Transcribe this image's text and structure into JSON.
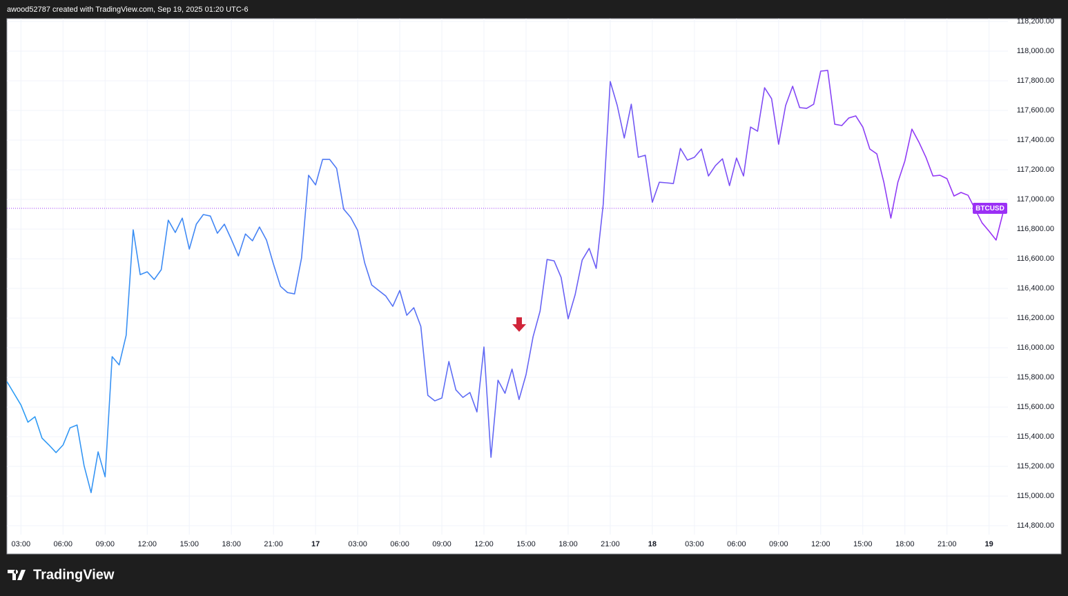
{
  "brand": "TradingView",
  "chart_data": {
    "type": "line",
    "title": "awood52787 created with TradingView.com, Sep 19, 2025 01:20 UTC-6",
    "categories": [
      null,
      null,
      "03:00",
      null,
      null,
      null,
      null,
      null,
      "06:00",
      null,
      null,
      null,
      null,
      null,
      "09:00",
      null,
      null,
      null,
      null,
      null,
      "12:00",
      null,
      null,
      null,
      null,
      null,
      "15:00",
      null,
      null,
      null,
      null,
      null,
      "18:00",
      null,
      null,
      null,
      null,
      null,
      "21:00",
      null,
      null,
      null,
      null,
      null,
      "17",
      null,
      null,
      null,
      null,
      null,
      "03:00",
      null,
      null,
      null,
      null,
      null,
      "06:00",
      null,
      null,
      null,
      null,
      null,
      "09:00",
      null,
      null,
      null,
      null,
      null,
      "12:00",
      null,
      null,
      null,
      null,
      null,
      "15:00",
      null,
      null,
      null,
      null,
      null,
      "18:00",
      null,
      null,
      null,
      null,
      null,
      "21:00",
      null,
      null,
      null,
      null,
      null,
      "18",
      null,
      null,
      null,
      null,
      null,
      "03:00",
      null,
      null,
      null,
      null,
      null,
      "06:00",
      null,
      null,
      null,
      null,
      null,
      "09:00",
      null,
      null,
      null,
      null,
      null,
      "12:00",
      null,
      null,
      null,
      null,
      null,
      "15:00",
      null,
      null,
      null,
      null,
      null,
      "18:00",
      null,
      null,
      null,
      null,
      null,
      "21:00",
      null,
      null,
      null,
      null,
      null,
      "19",
      null,
      null
    ],
    "series": [
      {
        "name": "BTCUSD",
        "color": [
          "#2a9df4",
          "#9b30f5"
        ],
        "values": [
          115772,
          115693,
          115614,
          115498,
          115535,
          115391,
          115344,
          115293,
          115344,
          115460,
          115479,
          115205,
          115023,
          115298,
          115130,
          115940,
          115884,
          116084,
          116795,
          116493,
          116512,
          116460,
          116526,
          116860,
          116777,
          116874,
          116665,
          116833,
          116898,
          116888,
          116772,
          116833,
          116730,
          116619,
          116767,
          116721,
          116814,
          116726,
          116563,
          116414,
          116372,
          116363,
          116605,
          117163,
          117098,
          117270,
          117270,
          117209,
          116935,
          116879,
          116791,
          116572,
          116423,
          116386,
          116349,
          116279,
          116386,
          116219,
          116270,
          116144,
          115679,
          115642,
          115661,
          115907,
          115716,
          115665,
          115698,
          115567,
          116005,
          115261,
          115781,
          115693,
          115856,
          115651,
          115819,
          116074,
          116247,
          116595,
          116586,
          116474,
          116195,
          116358,
          116591,
          116670,
          116535,
          116967,
          117795,
          117633,
          117414,
          117642,
          117284,
          117298,
          116981,
          117116,
          117112,
          117107,
          117344,
          117265,
          117284,
          117340,
          117158,
          117228,
          117274,
          117093,
          117279,
          117158,
          117488,
          117460,
          117753,
          117679,
          117372,
          117633,
          117763,
          117619,
          117614,
          117642,
          117865,
          117870,
          117507,
          117498,
          117549,
          117563,
          117488,
          117340,
          117307,
          117116,
          116874,
          117116,
          117260,
          117474,
          117386,
          117284,
          117158,
          117163,
          117140,
          117023,
          117047,
          117028,
          116935,
          116842,
          116786,
          116726,
          116912
        ]
      }
    ],
    "last_price": 116940,
    "ylim": [
      114740,
      118219
    ],
    "yticks": [
      {
        "value": 114800,
        "label": "114,800.00"
      },
      {
        "value": 115000,
        "label": "115,000.00"
      },
      {
        "value": 115200,
        "label": "115,200.00"
      },
      {
        "value": 115400,
        "label": "115,400.00"
      },
      {
        "value": 115600,
        "label": "115,600.00"
      },
      {
        "value": 115800,
        "label": "115,800.00"
      },
      {
        "value": 116000,
        "label": "116,000.00"
      },
      {
        "value": 116200,
        "label": "116,200.00"
      },
      {
        "value": 116400,
        "label": "116,400.00"
      },
      {
        "value": 116600,
        "label": "116,600.00"
      },
      {
        "value": 116800,
        "label": "116,800.00"
      },
      {
        "value": 117000,
        "label": "117,000.00"
      },
      {
        "value": 117200,
        "label": "117,200.00"
      },
      {
        "value": 117400,
        "label": "117,400.00"
      },
      {
        "value": 117600,
        "label": "117,600.00"
      },
      {
        "value": 117800,
        "label": "117,800.00"
      },
      {
        "value": 118000,
        "label": "118,000.00"
      },
      {
        "value": 118200,
        "label": "118,200.00"
      }
    ],
    "grid": true
  }
}
